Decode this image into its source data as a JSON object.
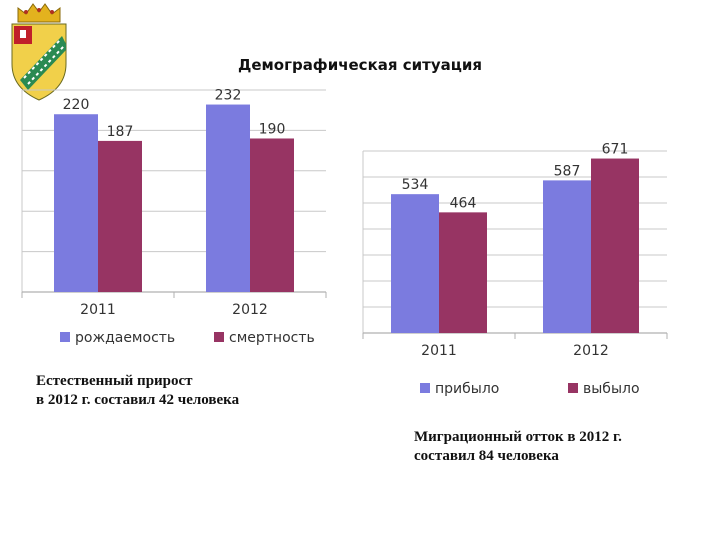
{
  "page": {
    "title": "Демографическая ситуация"
  },
  "emblem": {
    "icon": "coat-of-arms-emblem"
  },
  "charts": [
    {
      "type": "bar",
      "categories": [
        "2011",
        "2012"
      ],
      "series": [
        {
          "name": "рождаемость",
          "values": [
            220,
            232
          ],
          "color": "#7b7bdf"
        },
        {
          "name": "смертность",
          "values": [
            187,
            190
          ],
          "color": "#973463"
        }
      ],
      "ylim": [
        0,
        250
      ],
      "grid": true,
      "legend": "bottom"
    },
    {
      "type": "bar",
      "categories": [
        "2011",
        "2012"
      ],
      "series": [
        {
          "name": "прибыло",
          "values": [
            534,
            587
          ],
          "color": "#7b7bdf"
        },
        {
          "name": "выбыло",
          "values": [
            464,
            671
          ],
          "color": "#973463"
        }
      ],
      "ylim": [
        0,
        700
      ],
      "grid": true,
      "legend": "bottom"
    }
  ],
  "captions": {
    "natural": {
      "line1": "Естественный прирост",
      "line2": "в 2012 г. составил 42 человека"
    },
    "migration": {
      "line1": "Миграционный отток   в 2012 г.",
      "line2": "составил 84 человека"
    }
  }
}
